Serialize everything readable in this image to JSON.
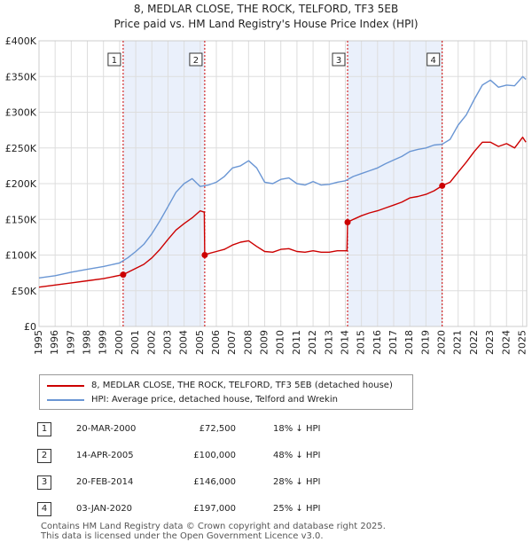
{
  "title": "8, MEDLAR CLOSE, THE ROCK, TELFORD, TF3 5EB",
  "subtitle": "Price paid vs. HM Land Registry's House Price Index (HPI)",
  "colors": {
    "property": "#cc0000",
    "hpi": "#6a96d4",
    "shade": "#eaf0fb",
    "grid": "#dddddd",
    "vline": "#cc0000"
  },
  "chart_data": {
    "type": "line",
    "title": "8, MEDLAR CLOSE, THE ROCK, TELFORD, TF3 5EB",
    "xlim": [
      1995,
      2025.25
    ],
    "ylim": [
      0,
      400000
    ],
    "y_ticks": [
      0,
      50000,
      100000,
      150000,
      200000,
      250000,
      300000,
      350000,
      400000
    ],
    "y_tick_labels": [
      "£0",
      "£50K",
      "£100K",
      "£150K",
      "£200K",
      "£250K",
      "£300K",
      "£350K",
      "£400K"
    ],
    "x_ticks": [
      1995,
      1996,
      1997,
      1998,
      1999,
      2000,
      2001,
      2002,
      2003,
      2004,
      2005,
      2006,
      2007,
      2008,
      2009,
      2010,
      2011,
      2012,
      2013,
      2014,
      2015,
      2016,
      2017,
      2018,
      2019,
      2020,
      2021,
      2022,
      2023,
      2024,
      2025
    ],
    "x_tick_labels": [
      "1995",
      "1996",
      "1997",
      "1998",
      "1999",
      "2000",
      "2001",
      "2002",
      "2003",
      "2004",
      "2005",
      "2006",
      "2007",
      "2008",
      "2009",
      "2010",
      "2011",
      "2012",
      "2013",
      "2014",
      "2015",
      "2016",
      "2017",
      "2018",
      "2019",
      "2020",
      "2021",
      "2022",
      "2023",
      "2024",
      "2025"
    ],
    "series": [
      {
        "name": "HPI: Average price, detached house, Telford and Wrekin",
        "x": [
          1995,
          1996,
          1997,
          1998,
          1999,
          2000,
          2000.5,
          2001,
          2001.5,
          2002,
          2002.5,
          2003,
          2003.5,
          2004,
          2004.5,
          2005,
          2005.5,
          2006,
          2006.5,
          2007,
          2007.5,
          2008,
          2008.5,
          2009,
          2009.5,
          2010,
          2010.5,
          2011,
          2011.5,
          2012,
          2012.5,
          2013,
          2013.5,
          2014,
          2014.5,
          2015,
          2015.5,
          2016,
          2016.5,
          2017,
          2017.5,
          2018,
          2018.5,
          2019,
          2019.5,
          2020,
          2020.5,
          2021,
          2021.5,
          2022,
          2022.5,
          2023,
          2023.5,
          2024,
          2024.5,
          2025,
          2025.2
        ],
        "values": [
          68000,
          71000,
          76000,
          80000,
          84000,
          89000,
          96000,
          105000,
          115000,
          130000,
          148000,
          168000,
          188000,
          200000,
          207000,
          196000,
          198000,
          202000,
          210000,
          222000,
          225000,
          232000,
          222000,
          202000,
          200000,
          206000,
          208000,
          200000,
          198000,
          203000,
          198000,
          199000,
          202000,
          204000,
          210000,
          214000,
          218000,
          222000,
          228000,
          233000,
          238000,
          245000,
          248000,
          250000,
          254000,
          255000,
          262000,
          282000,
          296000,
          318000,
          338000,
          345000,
          335000,
          338000,
          337000,
          350000,
          346000
        ]
      },
      {
        "name": "8, MEDLAR CLOSE, THE ROCK, TELFORD, TF3 5EB (detached house)",
        "x": [
          1995,
          1996,
          1997,
          1998,
          1999,
          2000.22,
          2000.7,
          2001.5,
          2002,
          2002.5,
          2003,
          2003.5,
          2004,
          2004.5,
          2005,
          2005.25,
          2005.28,
          2005.5,
          2006,
          2006.5,
          2007,
          2007.5,
          2008,
          2008.5,
          2009,
          2009.5,
          2010,
          2010.5,
          2011,
          2011.5,
          2012,
          2012.5,
          2013,
          2013.5,
          2014.1,
          2014.14,
          2014.5,
          2015,
          2015.5,
          2016,
          2016.5,
          2017,
          2017.5,
          2018,
          2018.5,
          2019,
          2019.5,
          2020.01,
          2020.5,
          2021,
          2021.5,
          2022,
          2022.5,
          2023,
          2023.5,
          2024,
          2024.5,
          2025,
          2025.2
        ],
        "values": [
          55000,
          58000,
          61000,
          64000,
          67000,
          72500,
          78000,
          87000,
          96000,
          108000,
          122000,
          135000,
          144000,
          152000,
          162000,
          160000,
          100000,
          102000,
          105000,
          108000,
          114000,
          118000,
          120000,
          112000,
          105000,
          104000,
          108000,
          109000,
          105000,
          104000,
          106000,
          104000,
          104000,
          106000,
          106000,
          146000,
          150000,
          155000,
          159000,
          162000,
          166000,
          170000,
          174000,
          180000,
          182000,
          185000,
          190000,
          197000,
          202000,
          216000,
          230000,
          245000,
          258000,
          258000,
          252000,
          256000,
          250000,
          265000,
          258000
        ]
      }
    ],
    "transactions": [
      {
        "num": "1",
        "x": 2000.22,
        "value": 72500
      },
      {
        "num": "2",
        "x": 2005.28,
        "value": 100000
      },
      {
        "num": "3",
        "x": 2014.14,
        "value": 146000
      },
      {
        "num": "4",
        "x": 2020.01,
        "value": 197000
      }
    ],
    "shaded_spans": [
      [
        2000.22,
        2005.28
      ],
      [
        2014.14,
        2020.01
      ]
    ]
  },
  "legend": {
    "property": "8, MEDLAR CLOSE, THE ROCK, TELFORD, TF3 5EB (detached house)",
    "hpi": "HPI: Average price, detached house, Telford and Wrekin"
  },
  "table": [
    {
      "num": "1",
      "date": "20-MAR-2000",
      "price": "£72,500",
      "hpi": "18% ↓ HPI"
    },
    {
      "num": "2",
      "date": "14-APR-2005",
      "price": "£100,000",
      "hpi": "48% ↓ HPI"
    },
    {
      "num": "3",
      "date": "20-FEB-2014",
      "price": "£146,000",
      "hpi": "28% ↓ HPI"
    },
    {
      "num": "4",
      "date": "03-JAN-2020",
      "price": "£197,000",
      "hpi": "25% ↓ HPI"
    }
  ],
  "footer": {
    "line1": "Contains HM Land Registry data © Crown copyright and database right 2025.",
    "line2": "This data is licensed under the Open Government Licence v3.0."
  }
}
